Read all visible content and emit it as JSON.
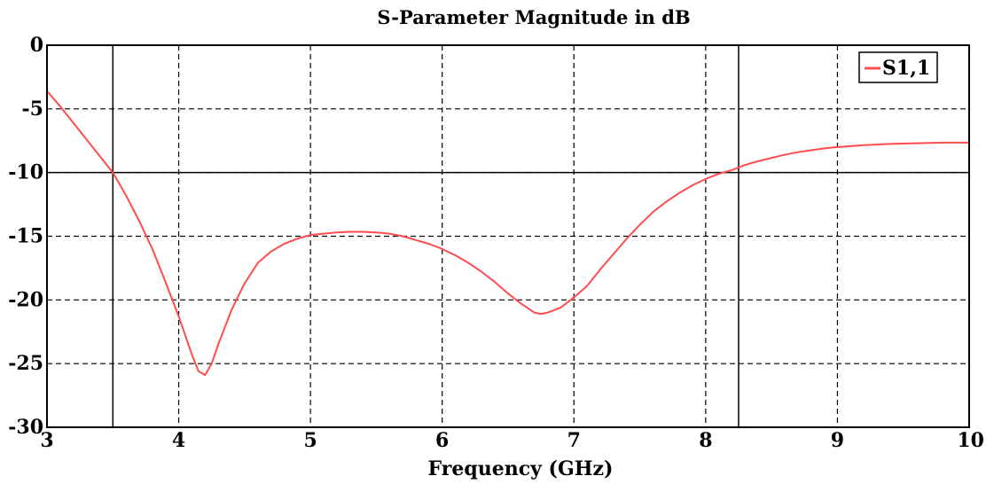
{
  "chart_data": {
    "type": "line",
    "title": "S-Parameter Magnitude in dB",
    "xlabel": "Frequency (GHz)",
    "ylabel": "",
    "xlim": [
      3,
      10
    ],
    "ylim": [
      -30,
      0
    ],
    "xticks": [
      3,
      4,
      5,
      6,
      7,
      8,
      9,
      10
    ],
    "yticks": [
      0,
      -5,
      -10,
      -15,
      -20,
      -25,
      -30
    ],
    "xtick_labels": [
      "3",
      "4",
      "5",
      "6",
      "7",
      "8",
      "9",
      "10"
    ],
    "ytick_labels": [
      "0",
      "-5",
      "-10",
      "-15",
      "-20",
      "-25",
      "-30"
    ],
    "grid": true,
    "grid_style": "dashed",
    "legend_position": "top-right",
    "reference_lines": {
      "vertical_x": [
        3.5,
        8.25
      ],
      "horizontal_y": [
        -10
      ]
    },
    "series": [
      {
        "name": "S1,1",
        "color": "#ff4d4d",
        "x": [
          3.0,
          3.1,
          3.2,
          3.3,
          3.4,
          3.5,
          3.6,
          3.7,
          3.8,
          3.9,
          4.0,
          4.05,
          4.1,
          4.15,
          4.2,
          4.25,
          4.3,
          4.4,
          4.5,
          4.6,
          4.7,
          4.8,
          4.9,
          5.0,
          5.1,
          5.2,
          5.3,
          5.4,
          5.5,
          5.6,
          5.7,
          5.8,
          5.9,
          6.0,
          6.1,
          6.2,
          6.3,
          6.4,
          6.5,
          6.6,
          6.7,
          6.75,
          6.8,
          6.9,
          7.0,
          7.1,
          7.2,
          7.3,
          7.4,
          7.5,
          7.6,
          7.7,
          7.8,
          7.9,
          8.0,
          8.1,
          8.2,
          8.3,
          8.4,
          8.5,
          8.6,
          8.7,
          8.8,
          8.9,
          9.0,
          9.2,
          9.4,
          9.6,
          9.8,
          10.0
        ],
        "y": [
          -3.6,
          -4.8,
          -6.1,
          -7.4,
          -8.7,
          -10.0,
          -11.8,
          -13.8,
          -16.0,
          -18.6,
          -21.3,
          -22.8,
          -24.3,
          -25.6,
          -25.9,
          -25.0,
          -23.5,
          -20.8,
          -18.7,
          -17.1,
          -16.2,
          -15.6,
          -15.2,
          -14.9,
          -14.8,
          -14.7,
          -14.65,
          -14.65,
          -14.7,
          -14.8,
          -15.0,
          -15.3,
          -15.6,
          -16.0,
          -16.5,
          -17.1,
          -17.8,
          -18.6,
          -19.5,
          -20.3,
          -21.0,
          -21.1,
          -21.0,
          -20.6,
          -19.8,
          -18.9,
          -17.6,
          -16.4,
          -15.2,
          -14.1,
          -13.1,
          -12.3,
          -11.6,
          -11.0,
          -10.5,
          -10.1,
          -9.8,
          -9.4,
          -9.1,
          -8.85,
          -8.6,
          -8.4,
          -8.25,
          -8.1,
          -8.0,
          -7.85,
          -7.75,
          -7.7,
          -7.65,
          -7.65
        ]
      }
    ]
  }
}
